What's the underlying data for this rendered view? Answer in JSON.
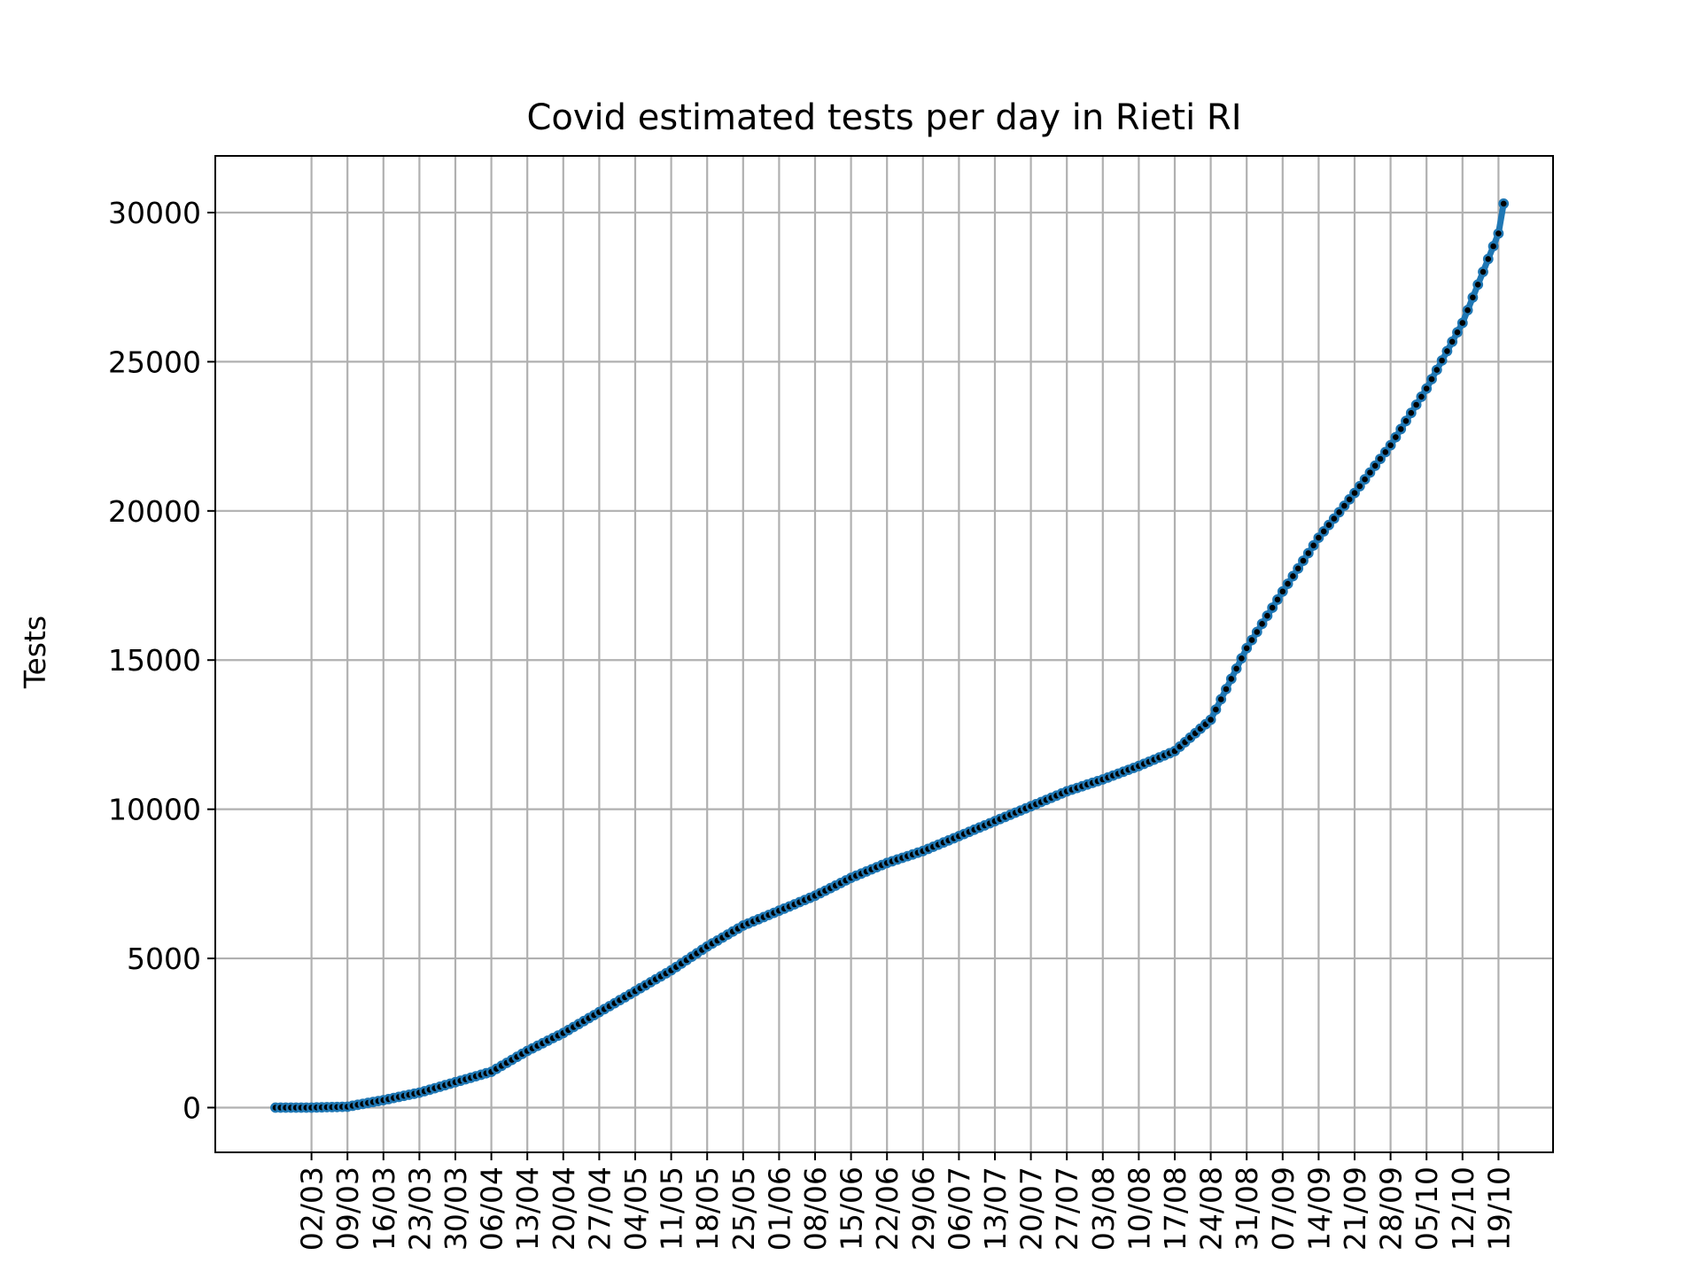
{
  "chart_data": {
    "type": "line",
    "title": "Covid estimated tests per day in Rieti RI",
    "xlabel": "",
    "ylabel": "Tests",
    "ylim": [
      -1500,
      31900
    ],
    "yticks": [
      0,
      5000,
      10000,
      15000,
      20000,
      25000,
      30000
    ],
    "x_tick_labels": [
      "02/03",
      "09/03",
      "16/03",
      "23/03",
      "30/03",
      "06/04",
      "13/04",
      "20/04",
      "27/04",
      "04/05",
      "11/05",
      "18/05",
      "25/05",
      "01/06",
      "08/06",
      "15/06",
      "22/06",
      "29/06",
      "06/07",
      "13/07",
      "20/07",
      "27/07",
      "03/08",
      "10/08",
      "17/08",
      "24/08",
      "31/08",
      "07/09",
      "14/09",
      "21/09",
      "28/09",
      "05/10",
      "12/10",
      "19/10"
    ],
    "x_start_date": "2020-02-24",
    "grid": true,
    "line_color": "#1f77b4",
    "marker_color": "#000000",
    "series": [
      {
        "name": "",
        "x": [
          "2020-02-24",
          "2020-03-02",
          "2020-03-09",
          "2020-03-16",
          "2020-03-23",
          "2020-03-30",
          "2020-04-06",
          "2020-04-13",
          "2020-04-20",
          "2020-04-27",
          "2020-05-04",
          "2020-05-11",
          "2020-05-18",
          "2020-05-25",
          "2020-06-01",
          "2020-06-08",
          "2020-06-15",
          "2020-06-22",
          "2020-06-29",
          "2020-07-06",
          "2020-07-13",
          "2020-07-20",
          "2020-07-27",
          "2020-08-03",
          "2020-08-10",
          "2020-08-17",
          "2020-08-24",
          "2020-08-31",
          "2020-09-07",
          "2020-09-14",
          "2020-09-21",
          "2020-09-28",
          "2020-10-05",
          "2020-10-12",
          "2020-10-19",
          "2020-10-20"
        ],
        "y": [
          0,
          0,
          30,
          250,
          500,
          850,
          1200,
          1900,
          2500,
          3200,
          3900,
          4600,
          5400,
          6100,
          6600,
          7100,
          7700,
          8200,
          8600,
          9100,
          9600,
          10100,
          10600,
          11000,
          11450,
          11950,
          13000,
          15400,
          17300,
          19100,
          20600,
          22200,
          24100,
          26300,
          29300,
          30300
        ]
      }
    ]
  }
}
